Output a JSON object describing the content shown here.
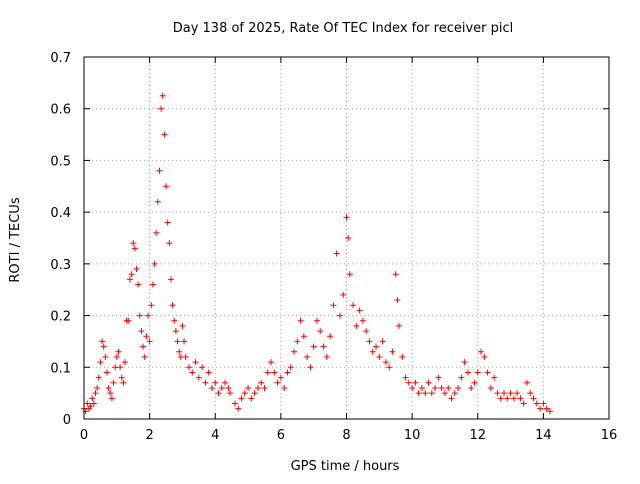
{
  "chart_data": {
    "type": "scatter",
    "title": "Day 138 of 2025, Rate Of TEC Index for receiver picl",
    "xlabel": "GPS time / hours",
    "ylabel": "ROTI / TECUs",
    "xlim": [
      0,
      16
    ],
    "ylim": [
      0,
      0.7
    ],
    "grid": true,
    "marker": "+",
    "x_ticks": [
      0,
      2,
      4,
      6,
      8,
      10,
      12,
      14,
      16
    ],
    "x_tick_labels": [
      "0",
      "2",
      "4",
      "6",
      "8",
      "10",
      "12",
      "14",
      "16"
    ],
    "y_ticks": [
      0,
      0.1,
      0.2,
      0.3,
      0.4,
      0.5,
      0.6,
      0.7
    ],
    "y_tick_labels": [
      "0",
      "0.1",
      "0.2",
      "0.3",
      "0.4",
      "0.5",
      "0.6",
      "0.7"
    ],
    "series": [
      {
        "name": "ROTI",
        "color": "#ff0000",
        "points": [
          [
            0.0,
            0.02
          ],
          [
            0.05,
            0.015
          ],
          [
            0.1,
            0.03
          ],
          [
            0.15,
            0.02
          ],
          [
            0.2,
            0.025
          ],
          [
            0.25,
            0.04
          ],
          [
            0.3,
            0.03
          ],
          [
            0.35,
            0.05
          ],
          [
            0.4,
            0.06
          ],
          [
            0.45,
            0.08
          ],
          [
            0.5,
            0.11
          ],
          [
            0.55,
            0.15
          ],
          [
            0.6,
            0.14
          ],
          [
            0.65,
            0.12
          ],
          [
            0.7,
            0.09
          ],
          [
            0.75,
            0.06
          ],
          [
            0.8,
            0.05
          ],
          [
            0.85,
            0.04
          ],
          [
            0.9,
            0.07
          ],
          [
            0.95,
            0.1
          ],
          [
            1.0,
            0.12
          ],
          [
            1.05,
            0.13
          ],
          [
            1.1,
            0.1
          ],
          [
            1.15,
            0.08
          ],
          [
            1.2,
            0.07
          ],
          [
            1.25,
            0.11
          ],
          [
            1.3,
            0.19
          ],
          [
            1.35,
            0.19
          ],
          [
            1.4,
            0.27
          ],
          [
            1.45,
            0.28
          ],
          [
            1.5,
            0.34
          ],
          [
            1.55,
            0.33
          ],
          [
            1.6,
            0.29
          ],
          [
            1.65,
            0.26
          ],
          [
            1.7,
            0.2
          ],
          [
            1.75,
            0.17
          ],
          [
            1.8,
            0.14
          ],
          [
            1.85,
            0.12
          ],
          [
            1.9,
            0.16
          ],
          [
            1.95,
            0.2
          ],
          [
            2.0,
            0.15
          ],
          [
            2.05,
            0.22
          ],
          [
            2.1,
            0.26
          ],
          [
            2.15,
            0.3
          ],
          [
            2.2,
            0.36
          ],
          [
            2.25,
            0.42
          ],
          [
            2.3,
            0.48
          ],
          [
            2.35,
            0.6
          ],
          [
            2.4,
            0.625
          ],
          [
            2.45,
            0.55
          ],
          [
            2.5,
            0.45
          ],
          [
            2.55,
            0.38
          ],
          [
            2.6,
            0.34
          ],
          [
            2.65,
            0.27
          ],
          [
            2.7,
            0.22
          ],
          [
            2.75,
            0.19
          ],
          [
            2.8,
            0.17
          ],
          [
            2.85,
            0.15
          ],
          [
            2.9,
            0.13
          ],
          [
            2.95,
            0.12
          ],
          [
            3.0,
            0.18
          ],
          [
            3.05,
            0.15
          ],
          [
            3.1,
            0.12
          ],
          [
            3.2,
            0.1
          ],
          [
            3.3,
            0.09
          ],
          [
            3.4,
            0.11
          ],
          [
            3.5,
            0.08
          ],
          [
            3.6,
            0.1
          ],
          [
            3.7,
            0.07
          ],
          [
            3.8,
            0.09
          ],
          [
            3.9,
            0.06
          ],
          [
            4.0,
            0.07
          ],
          [
            4.1,
            0.05
          ],
          [
            4.2,
            0.06
          ],
          [
            4.3,
            0.07
          ],
          [
            4.4,
            0.06
          ],
          [
            4.45,
            0.05
          ],
          [
            4.6,
            0.03
          ],
          [
            4.7,
            0.02
          ],
          [
            4.8,
            0.04
          ],
          [
            4.9,
            0.05
          ],
          [
            5.0,
            0.06
          ],
          [
            5.1,
            0.04
          ],
          [
            5.2,
            0.05
          ],
          [
            5.3,
            0.06
          ],
          [
            5.4,
            0.07
          ],
          [
            5.5,
            0.06
          ],
          [
            5.6,
            0.09
          ],
          [
            5.7,
            0.11
          ],
          [
            5.8,
            0.09
          ],
          [
            5.9,
            0.07
          ],
          [
            6.0,
            0.08
          ],
          [
            6.1,
            0.06
          ],
          [
            6.2,
            0.09
          ],
          [
            6.3,
            0.1
          ],
          [
            6.4,
            0.13
          ],
          [
            6.5,
            0.15
          ],
          [
            6.6,
            0.19
          ],
          [
            6.7,
            0.16
          ],
          [
            6.8,
            0.12
          ],
          [
            6.9,
            0.1
          ],
          [
            7.0,
            0.14
          ],
          [
            7.1,
            0.19
          ],
          [
            7.2,
            0.17
          ],
          [
            7.3,
            0.14
          ],
          [
            7.4,
            0.12
          ],
          [
            7.5,
            0.16
          ],
          [
            7.6,
            0.22
          ],
          [
            7.7,
            0.32
          ],
          [
            7.8,
            0.2
          ],
          [
            7.9,
            0.24
          ],
          [
            8.0,
            0.39
          ],
          [
            8.05,
            0.35
          ],
          [
            8.1,
            0.28
          ],
          [
            8.2,
            0.22
          ],
          [
            8.3,
            0.18
          ],
          [
            8.4,
            0.21
          ],
          [
            8.5,
            0.19
          ],
          [
            8.6,
            0.17
          ],
          [
            8.7,
            0.15
          ],
          [
            8.8,
            0.13
          ],
          [
            8.9,
            0.14
          ],
          [
            9.0,
            0.12
          ],
          [
            9.1,
            0.15
          ],
          [
            9.2,
            0.11
          ],
          [
            9.3,
            0.1
          ],
          [
            9.4,
            0.13
          ],
          [
            9.5,
            0.28
          ],
          [
            9.55,
            0.23
          ],
          [
            9.6,
            0.18
          ],
          [
            9.7,
            0.12
          ],
          [
            9.8,
            0.08
          ],
          [
            9.9,
            0.07
          ],
          [
            10.0,
            0.06
          ],
          [
            10.1,
            0.07
          ],
          [
            10.2,
            0.05
          ],
          [
            10.3,
            0.06
          ],
          [
            10.4,
            0.05
          ],
          [
            10.5,
            0.07
          ],
          [
            10.6,
            0.05
          ],
          [
            10.7,
            0.06
          ],
          [
            10.8,
            0.08
          ],
          [
            10.9,
            0.06
          ],
          [
            11.0,
            0.05
          ],
          [
            11.1,
            0.06
          ],
          [
            11.2,
            0.04
          ],
          [
            11.3,
            0.05
          ],
          [
            11.4,
            0.06
          ],
          [
            11.5,
            0.08
          ],
          [
            11.6,
            0.11
          ],
          [
            11.7,
            0.09
          ],
          [
            11.8,
            0.06
          ],
          [
            11.9,
            0.07
          ],
          [
            12.0,
            0.09
          ],
          [
            12.1,
            0.13
          ],
          [
            12.2,
            0.12
          ],
          [
            12.3,
            0.09
          ],
          [
            12.4,
            0.06
          ],
          [
            12.5,
            0.08
          ],
          [
            12.6,
            0.05
          ],
          [
            12.7,
            0.04
          ],
          [
            12.8,
            0.05
          ],
          [
            12.9,
            0.04
          ],
          [
            13.0,
            0.05
          ],
          [
            13.1,
            0.04
          ],
          [
            13.2,
            0.05
          ],
          [
            13.3,
            0.04
          ],
          [
            13.4,
            0.03
          ],
          [
            13.5,
            0.07
          ],
          [
            13.6,
            0.05
          ],
          [
            13.7,
            0.04
          ],
          [
            13.8,
            0.03
          ],
          [
            13.9,
            0.02
          ],
          [
            14.0,
            0.03
          ],
          [
            14.1,
            0.02
          ],
          [
            14.2,
            0.015
          ]
        ]
      }
    ]
  }
}
